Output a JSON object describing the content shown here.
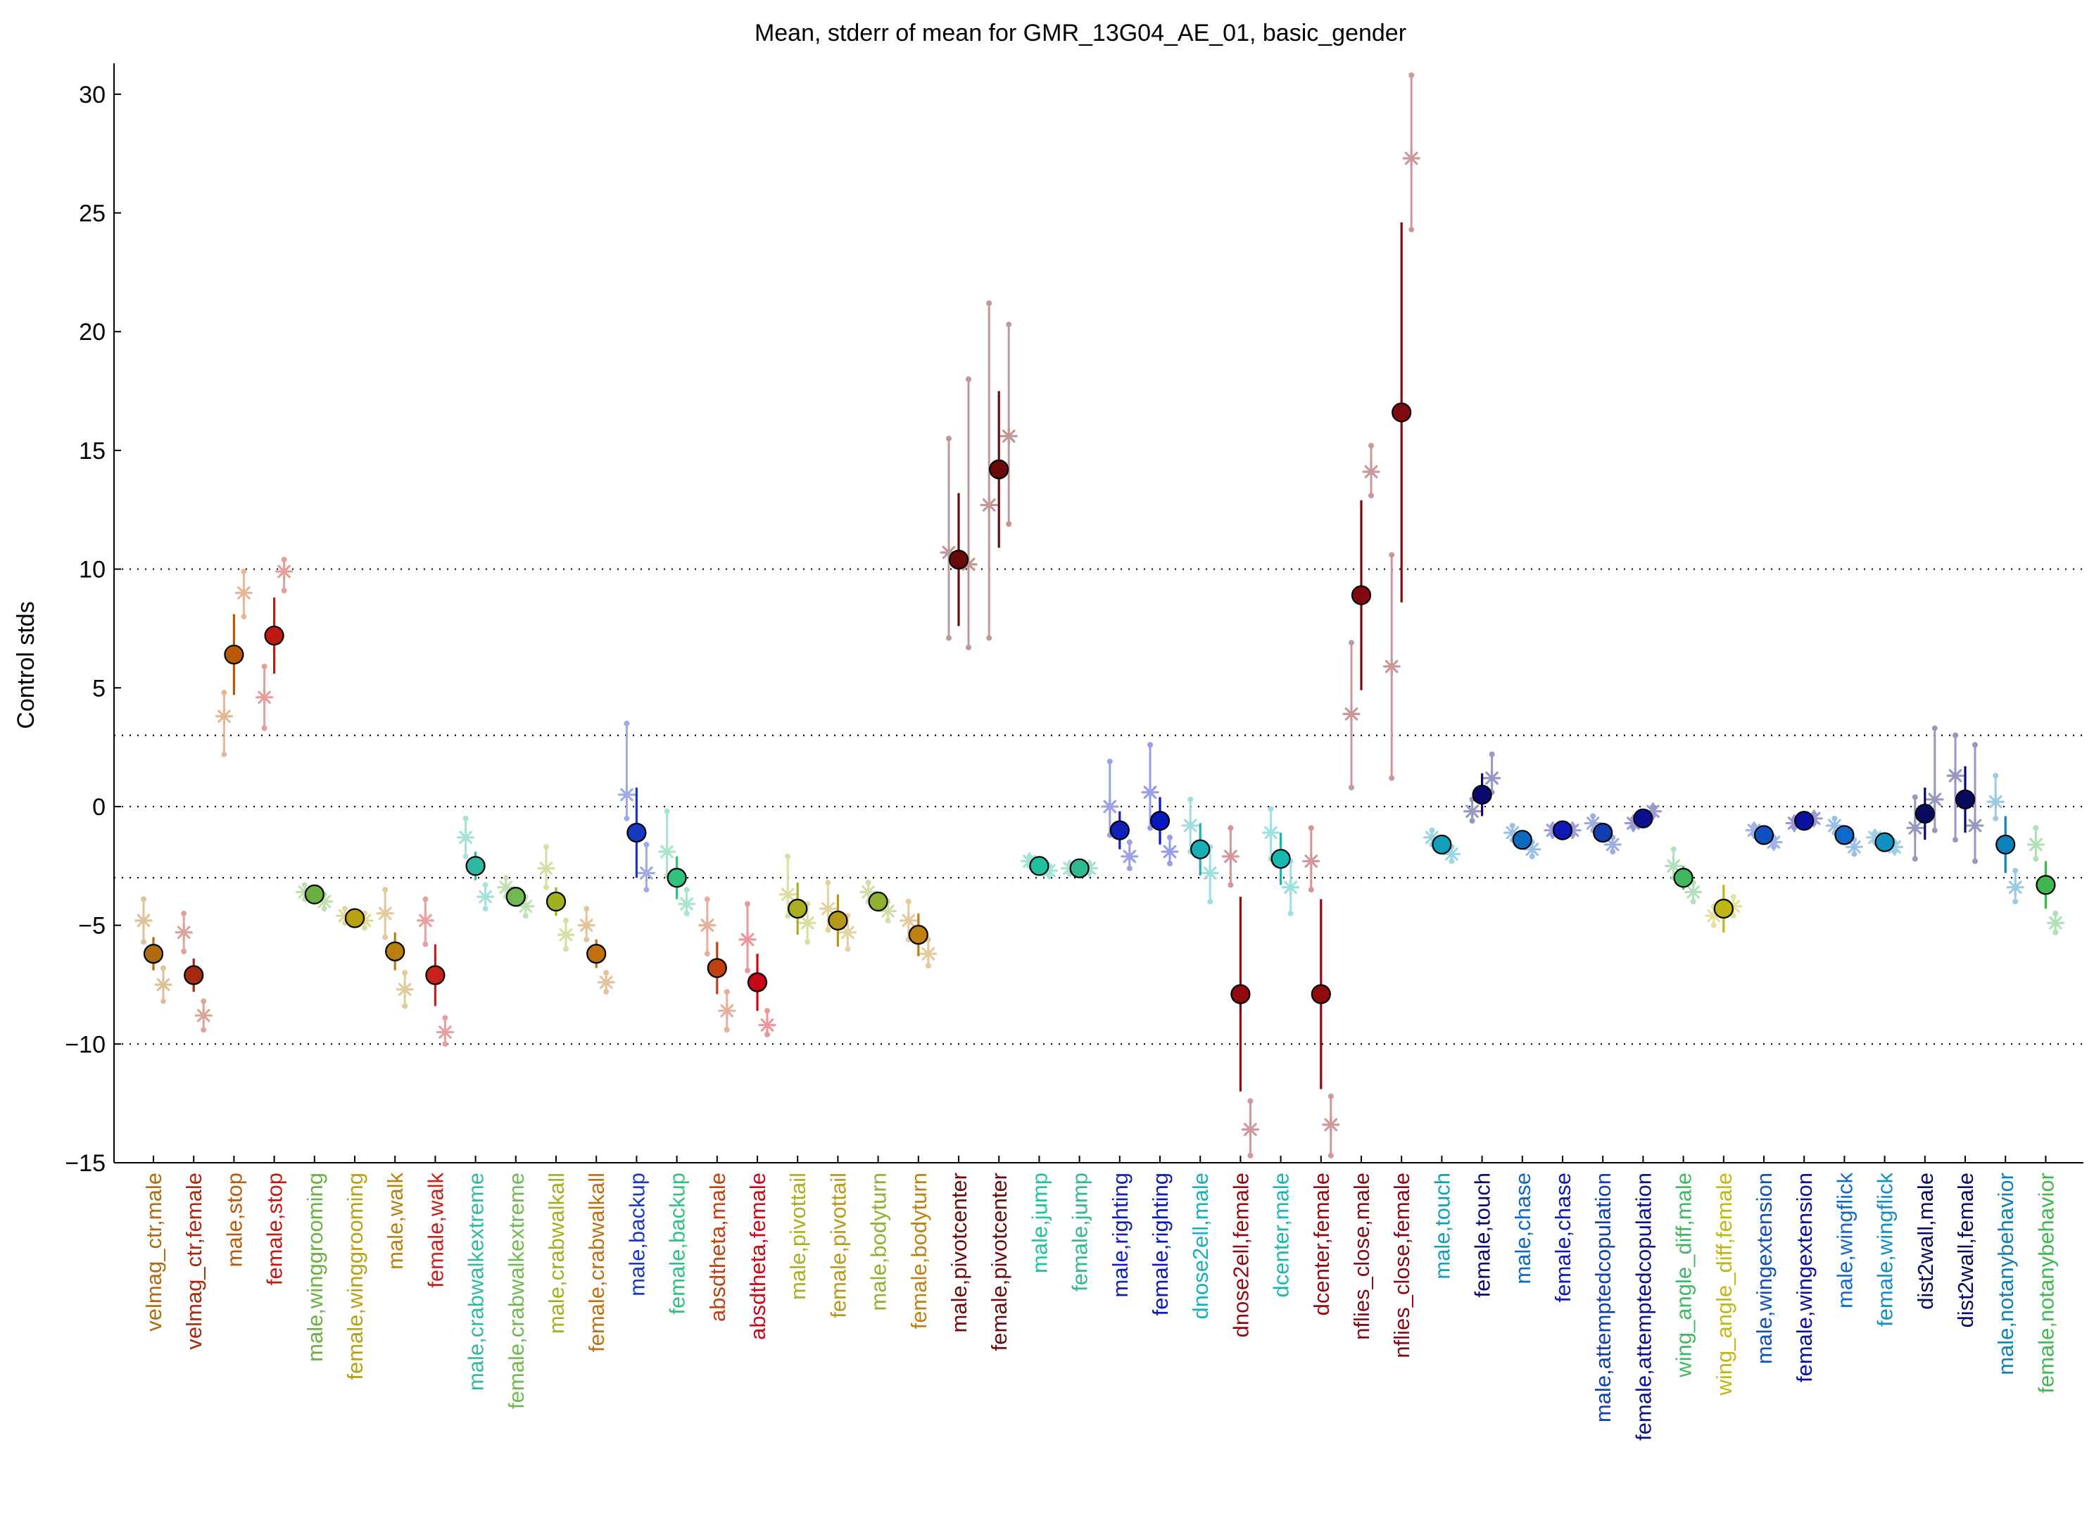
{
  "chart_data": {
    "type": "scatter",
    "title": "Mean, stderr of mean for GMR_13G04_AE_01, basic_gender",
    "xlabel": "",
    "ylabel": "Control stds",
    "ylim": [
      -15,
      31.3
    ],
    "yticks": [
      -15,
      -10,
      -5,
      0,
      5,
      10,
      15,
      20,
      25,
      30
    ],
    "reference_lines": [
      -10,
      -3,
      0,
      3,
      10
    ],
    "grid": false,
    "legend": "none",
    "categories": [
      {
        "label": "velmag_ctr,male",
        "color": "#b06a10",
        "mean": -6.2,
        "sem": 0.7,
        "stars": [
          {
            "v": -4.8,
            "lo": -5.7,
            "hi": -3.9
          },
          {
            "v": -7.5,
            "lo": -8.2,
            "hi": -6.8
          }
        ]
      },
      {
        "label": "velmag_ctr,female",
        "color": "#a52a10",
        "mean": -7.1,
        "sem": 0.7,
        "stars": [
          {
            "v": -5.3,
            "lo": -6.1,
            "hi": -4.5
          },
          {
            "v": -8.8,
            "lo": -9.4,
            "hi": -8.2
          }
        ]
      },
      {
        "label": "male,stop",
        "color": "#bb5808",
        "mean": 6.4,
        "sem": 1.7,
        "stars": [
          {
            "v": 3.8,
            "lo": 2.2,
            "hi": 4.8
          },
          {
            "v": 9.0,
            "lo": 8.0,
            "hi": 9.9
          }
        ]
      },
      {
        "label": "female,stop",
        "color": "#c01a10",
        "mean": 7.2,
        "sem": 1.6,
        "stars": [
          {
            "v": 4.6,
            "lo": 3.3,
            "hi": 5.9
          },
          {
            "v": 9.9,
            "lo": 9.1,
            "hi": 10.4
          }
        ]
      },
      {
        "label": "male,winggrooming",
        "color": "#6ab040",
        "mean": -3.7,
        "sem": 0.3,
        "stars": [
          {
            "v": -3.6,
            "lo": -3.9,
            "hi": -3.3
          },
          {
            "v": -4.0,
            "lo": -4.3,
            "hi": -3.7
          }
        ]
      },
      {
        "label": "female,winggrooming",
        "color": "#b8a010",
        "mean": -4.7,
        "sem": 0.3,
        "stars": [
          {
            "v": -4.6,
            "lo": -4.9,
            "hi": -4.3
          },
          {
            "v": -4.8,
            "lo": -5.1,
            "hi": -4.5
          }
        ]
      },
      {
        "label": "male,walk",
        "color": "#b88010",
        "mean": -6.1,
        "sem": 0.8,
        "stars": [
          {
            "v": -4.5,
            "lo": -5.5,
            "hi": -3.5
          },
          {
            "v": -7.7,
            "lo": -8.4,
            "hi": -7.0
          }
        ]
      },
      {
        "label": "female,walk",
        "color": "#c8201a",
        "mean": -7.1,
        "sem": 1.3,
        "stars": [
          {
            "v": -4.8,
            "lo": -5.8,
            "hi": -3.9
          },
          {
            "v": -9.5,
            "lo": -10.0,
            "hi": -8.9
          }
        ]
      },
      {
        "label": "male,crabwalkextreme",
        "color": "#30b8a0",
        "mean": -2.5,
        "sem": 0.6,
        "stars": [
          {
            "v": -1.3,
            "lo": -2.1,
            "hi": -0.5
          },
          {
            "v": -3.8,
            "lo": -4.3,
            "hi": -3.3
          }
        ]
      },
      {
        "label": "female,crabwalkextreme",
        "color": "#70b850",
        "mean": -3.8,
        "sem": 0.3,
        "stars": [
          {
            "v": -3.4,
            "lo": -3.8,
            "hi": -3.0
          },
          {
            "v": -4.2,
            "lo": -4.6,
            "hi": -3.8
          }
        ]
      },
      {
        "label": "male,crabwalkall",
        "color": "#a0b020",
        "mean": -4.0,
        "sem": 0.6,
        "stars": [
          {
            "v": -2.6,
            "lo": -3.4,
            "hi": -1.7
          },
          {
            "v": -5.4,
            "lo": -6.0,
            "hi": -4.8
          }
        ]
      },
      {
        "label": "female,crabwalkall",
        "color": "#c07010",
        "mean": -6.2,
        "sem": 0.6,
        "stars": [
          {
            "v": -5.0,
            "lo": -5.6,
            "hi": -4.3
          },
          {
            "v": -7.4,
            "lo": -7.8,
            "hi": -7.0
          }
        ]
      },
      {
        "label": "male,backup",
        "color": "#1838c0",
        "mean": -1.1,
        "sem": 1.9,
        "stars": [
          {
            "v": 0.5,
            "lo": -0.5,
            "hi": 3.5
          },
          {
            "v": -2.8,
            "lo": -3.5,
            "hi": -1.6
          }
        ]
      },
      {
        "label": "female,backup",
        "color": "#30c080",
        "mean": -3.0,
        "sem": 0.9,
        "stars": [
          {
            "v": -1.9,
            "lo": -2.9,
            "hi": -0.2
          },
          {
            "v": -4.1,
            "lo": -4.5,
            "hi": -3.5
          }
        ]
      },
      {
        "label": "absdtheta,male",
        "color": "#c04010",
        "mean": -6.8,
        "sem": 1.1,
        "stars": [
          {
            "v": -5.0,
            "lo": -6.2,
            "hi": -3.9
          },
          {
            "v": -8.6,
            "lo": -9.4,
            "hi": -7.8
          }
        ]
      },
      {
        "label": "absdtheta,female",
        "color": "#c80818",
        "mean": -7.4,
        "sem": 1.2,
        "stars": [
          {
            "v": -5.6,
            "lo": -6.9,
            "hi": -4.1
          },
          {
            "v": -9.2,
            "lo": -9.6,
            "hi": -8.6
          }
        ]
      },
      {
        "label": "male,pivottail",
        "color": "#a8b020",
        "mean": -4.3,
        "sem": 1.1,
        "stars": [
          {
            "v": -3.7,
            "lo": -4.6,
            "hi": -2.1
          },
          {
            "v": -4.9,
            "lo": -5.7,
            "hi": -4.1
          }
        ]
      },
      {
        "label": "female,pivottail",
        "color": "#b89818",
        "mean": -4.8,
        "sem": 1.1,
        "stars": [
          {
            "v": -4.3,
            "lo": -5.2,
            "hi": -3.2
          },
          {
            "v": -5.3,
            "lo": -6.0,
            "hi": -4.6
          }
        ]
      },
      {
        "label": "male,bodyturn",
        "color": "#90b030",
        "mean": -4.0,
        "sem": 0.4,
        "stars": [
          {
            "v": -3.6,
            "lo": -4.0,
            "hi": -3.2
          },
          {
            "v": -4.4,
            "lo": -4.8,
            "hi": -4.0
          }
        ]
      },
      {
        "label": "female,bodyturn",
        "color": "#c08010",
        "mean": -5.4,
        "sem": 0.9,
        "stars": [
          {
            "v": -4.8,
            "lo": -5.6,
            "hi": -4.0
          },
          {
            "v": -6.2,
            "lo": -6.7,
            "hi": -5.6
          }
        ]
      },
      {
        "label": "male,pivotcenter",
        "color": "#6a0a0a",
        "mean": 10.4,
        "sem": 2.8,
        "stars": [
          {
            "v": 10.7,
            "lo": 7.1,
            "hi": 15.5
          },
          {
            "v": 10.2,
            "lo": 6.7,
            "hi": 18.0
          }
        ]
      },
      {
        "label": "female,pivotcenter",
        "color": "#6a0a0a",
        "mean": 14.2,
        "sem": 3.3,
        "stars": [
          {
            "v": 12.7,
            "lo": 7.1,
            "hi": 21.2
          },
          {
            "v": 15.6,
            "lo": 11.9,
            "hi": 20.3
          }
        ]
      },
      {
        "label": "male,jump",
        "color": "#20c0a0",
        "mean": -2.5,
        "sem": 0.1,
        "stars": [
          {
            "v": -2.3,
            "lo": -2.5,
            "hi": -2.1
          },
          {
            "v": -2.7,
            "lo": -2.9,
            "hi": -2.5
          }
        ]
      },
      {
        "label": "female,jump",
        "color": "#30b890",
        "mean": -2.6,
        "sem": 0.1,
        "stars": [
          {
            "v": -2.6,
            "lo": -2.8,
            "hi": -2.4
          },
          {
            "v": -2.6,
            "lo": -2.8,
            "hi": -2.4
          }
        ]
      },
      {
        "label": "male,righting",
        "color": "#1020b8",
        "mean": -1.0,
        "sem": 0.8,
        "stars": [
          {
            "v": 0.0,
            "lo": -1.2,
            "hi": 1.9
          },
          {
            "v": -2.1,
            "lo": -2.6,
            "hi": -1.5
          }
        ]
      },
      {
        "label": "female,righting",
        "color": "#0818c0",
        "mean": -0.6,
        "sem": 1.0,
        "stars": [
          {
            "v": 0.6,
            "lo": -0.9,
            "hi": 2.6
          },
          {
            "v": -1.9,
            "lo": -2.4,
            "hi": -1.3
          }
        ]
      },
      {
        "label": "dnose2ell,male",
        "color": "#18b0b8",
        "mean": -1.8,
        "sem": 1.1,
        "stars": [
          {
            "v": -0.8,
            "lo": -1.9,
            "hi": 0.3
          },
          {
            "v": -2.8,
            "lo": -4.0,
            "hi": -1.7
          }
        ]
      },
      {
        "label": "dnose2ell,female",
        "color": "#900a10",
        "mean": -7.9,
        "sem": 4.1,
        "stars": [
          {
            "v": -2.1,
            "lo": -3.3,
            "hi": -0.9
          },
          {
            "v": -13.6,
            "lo": -14.7,
            "hi": -12.4
          }
        ]
      },
      {
        "label": "dcenter,male",
        "color": "#18b8b0",
        "mean": -2.2,
        "sem": 1.1,
        "stars": [
          {
            "v": -1.1,
            "lo": -2.2,
            "hi": -0.1
          },
          {
            "v": -3.4,
            "lo": -4.5,
            "hi": -2.3
          }
        ]
      },
      {
        "label": "dcenter,female",
        "color": "#900a10",
        "mean": -7.9,
        "sem": 4.0,
        "stars": [
          {
            "v": -2.3,
            "lo": -3.5,
            "hi": -0.9
          },
          {
            "v": -13.4,
            "lo": -14.7,
            "hi": -12.2
          }
        ]
      },
      {
        "label": "nflies_close,male",
        "color": "#800a10",
        "mean": 8.9,
        "sem": 4.0,
        "stars": [
          {
            "v": 3.9,
            "lo": 0.8,
            "hi": 6.9
          },
          {
            "v": 14.1,
            "lo": 13.1,
            "hi": 15.2
          }
        ]
      },
      {
        "label": "nflies_close,female",
        "color": "#800a10",
        "mean": 16.6,
        "sem": 8.0,
        "stars": [
          {
            "v": 5.9,
            "lo": 1.2,
            "hi": 10.6
          },
          {
            "v": 27.3,
            "lo": 24.3,
            "hi": 30.8
          }
        ]
      },
      {
        "label": "male,touch",
        "color": "#10a0b8",
        "mean": -1.6,
        "sem": 0.3,
        "stars": [
          {
            "v": -1.3,
            "lo": -1.6,
            "hi": -1.0
          },
          {
            "v": -2.0,
            "lo": -2.3,
            "hi": -1.7
          }
        ]
      },
      {
        "label": "female,touch",
        "color": "#0a0a70",
        "mean": 0.5,
        "sem": 0.9,
        "stars": [
          {
            "v": -0.2,
            "lo": -0.6,
            "hi": 0.3
          },
          {
            "v": 1.2,
            "lo": 0.6,
            "hi": 2.2
          }
        ]
      },
      {
        "label": "male,chase",
        "color": "#1068c0",
        "mean": -1.4,
        "sem": 0.3,
        "stars": [
          {
            "v": -1.1,
            "lo": -1.4,
            "hi": -0.8
          },
          {
            "v": -1.8,
            "lo": -2.1,
            "hi": -1.5
          }
        ]
      },
      {
        "label": "female,chase",
        "color": "#1018b8",
        "mean": -1.0,
        "sem": 0.2,
        "stars": [
          {
            "v": -1.0,
            "lo": -1.2,
            "hi": -0.8
          },
          {
            "v": -1.0,
            "lo": -1.2,
            "hi": -0.8
          }
        ]
      },
      {
        "label": "male,attemptedcopulation",
        "color": "#1040b0",
        "mean": -1.1,
        "sem": 0.4,
        "stars": [
          {
            "v": -0.7,
            "lo": -1.0,
            "hi": -0.4
          },
          {
            "v": -1.6,
            "lo": -1.9,
            "hi": -1.3
          }
        ]
      },
      {
        "label": "female,attemptedcopulation",
        "color": "#0a1090",
        "mean": -0.5,
        "sem": 0.3,
        "stars": [
          {
            "v": -0.7,
            "lo": -0.9,
            "hi": -0.5
          },
          {
            "v": -0.2,
            "lo": -0.4,
            "hi": 0.0
          }
        ]
      },
      {
        "label": "wing_angle_diff,male",
        "color": "#40b860",
        "mean": -3.0,
        "sem": 0.5,
        "stars": [
          {
            "v": -2.5,
            "lo": -3.0,
            "hi": -1.8
          },
          {
            "v": -3.6,
            "lo": -4.0,
            "hi": -3.2
          }
        ]
      },
      {
        "label": "wing_angle_diff,female",
        "color": "#c0b810",
        "mean": -4.3,
        "sem": 1.0,
        "stars": [
          {
            "v": -4.6,
            "lo": -5.0,
            "hi": -4.2
          },
          {
            "v": -4.2,
            "lo": -4.6,
            "hi": -3.8
          }
        ]
      },
      {
        "label": "male,wingextension",
        "color": "#1050c0",
        "mean": -1.2,
        "sem": 0.2,
        "stars": [
          {
            "v": -1.0,
            "lo": -1.2,
            "hi": -0.8
          },
          {
            "v": -1.5,
            "lo": -1.7,
            "hi": -1.3
          }
        ]
      },
      {
        "label": "female,wingextension",
        "color": "#0a10a0",
        "mean": -0.6,
        "sem": 0.2,
        "stars": [
          {
            "v": -0.7,
            "lo": -0.9,
            "hi": -0.5
          },
          {
            "v": -0.5,
            "lo": -0.7,
            "hi": -0.3
          }
        ]
      },
      {
        "label": "male,wingflick",
        "color": "#1068c8",
        "mean": -1.2,
        "sem": 0.4,
        "stars": [
          {
            "v": -0.8,
            "lo": -1.1,
            "hi": -0.5
          },
          {
            "v": -1.7,
            "lo": -2.0,
            "hi": -1.4
          }
        ]
      },
      {
        "label": "female,wingflick",
        "color": "#1090c0",
        "mean": -1.5,
        "sem": 0.2,
        "stars": [
          {
            "v": -1.3,
            "lo": -1.5,
            "hi": -1.1
          },
          {
            "v": -1.7,
            "lo": -1.9,
            "hi": -1.5
          }
        ]
      },
      {
        "label": "dist2wall,male",
        "color": "#0a0a60",
        "mean": -0.3,
        "sem": 1.1,
        "stars": [
          {
            "v": -0.9,
            "lo": -2.2,
            "hi": 0.4
          },
          {
            "v": 0.3,
            "lo": -1.0,
            "hi": 3.3
          }
        ]
      },
      {
        "label": "dist2wall,female",
        "color": "#0a0a60",
        "mean": 0.3,
        "sem": 1.4,
        "stars": [
          {
            "v": 1.3,
            "lo": -1.4,
            "hi": 3.0
          },
          {
            "v": -0.8,
            "lo": -2.3,
            "hi": 2.6
          }
        ]
      },
      {
        "label": "male,notanybehavior",
        "color": "#1080b8",
        "mean": -1.6,
        "sem": 1.2,
        "stars": [
          {
            "v": 0.2,
            "lo": -0.5,
            "hi": 1.3
          },
          {
            "v": -3.4,
            "lo": -4.0,
            "hi": -2.7
          }
        ]
      },
      {
        "label": "female,notanybehavior",
        "color": "#40b850",
        "mean": -3.3,
        "sem": 1.0,
        "stars": [
          {
            "v": -1.6,
            "lo": -2.2,
            "hi": -0.9
          },
          {
            "v": -4.9,
            "lo": -5.3,
            "hi": -4.5
          }
        ]
      }
    ]
  }
}
